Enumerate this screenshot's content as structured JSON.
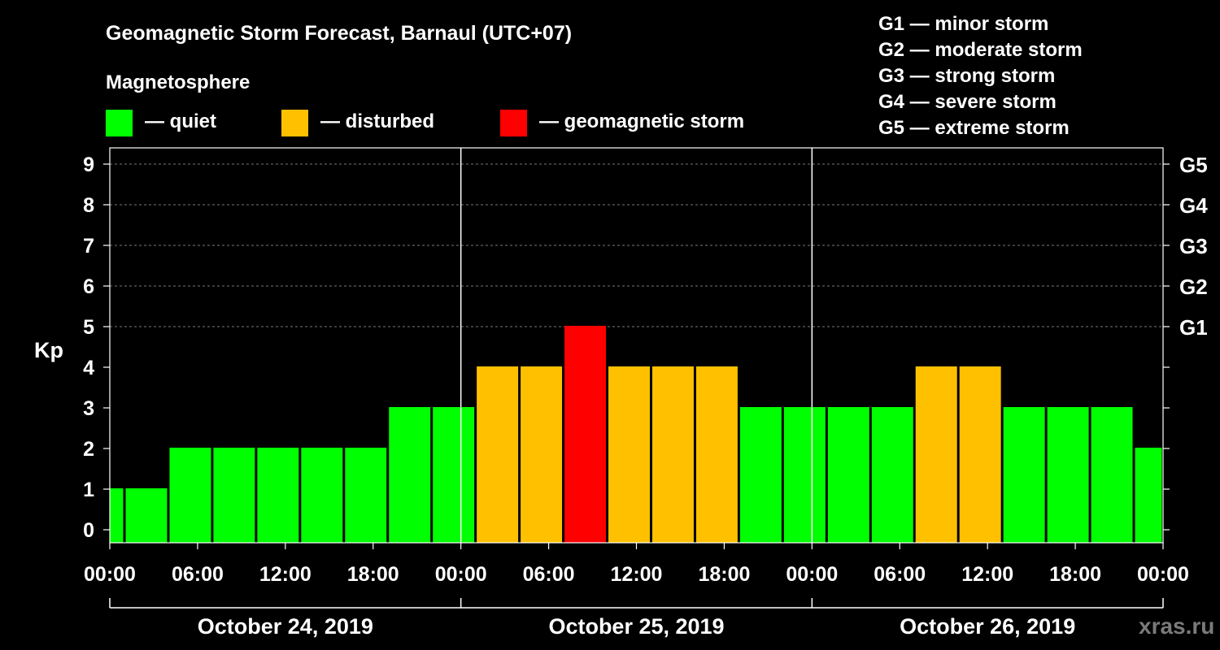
{
  "chart_data": {
    "type": "bar",
    "title": "Geomagnetic Storm Forecast, Barnaul (UTC+07)",
    "legend_title": "Magnetosphere",
    "legend": [
      {
        "key": "quiet",
        "label": "— quiet",
        "color": "#00ff00"
      },
      {
        "key": "disturbed",
        "label": "— disturbed",
        "color": "#ffc000"
      },
      {
        "key": "storm",
        "label": "— geomagnetic storm",
        "color": "#ff0000"
      }
    ],
    "storm_scale": [
      "G1 — minor storm",
      "G2 — moderate storm",
      "G3 — strong storm",
      "G4 — severe storm",
      "G5 — extreme storm"
    ],
    "ylabel": "Kp",
    "ylim": [
      0,
      9
    ],
    "yticks": [
      "0",
      "1",
      "2",
      "3",
      "4",
      "5",
      "6",
      "7",
      "8",
      "9"
    ],
    "right_labels": [
      {
        "kp": 5,
        "label": "G1"
      },
      {
        "kp": 6,
        "label": "G2"
      },
      {
        "kp": 7,
        "label": "G3"
      },
      {
        "kp": 8,
        "label": "G4"
      },
      {
        "kp": 9,
        "label": "G5"
      }
    ],
    "xlim_hours": [
      0,
      72
    ],
    "xtick_labels": [
      "00:00",
      "06:00",
      "12:00",
      "18:00",
      "00:00",
      "06:00",
      "12:00",
      "18:00",
      "00:00",
      "06:00",
      "12:00",
      "18:00",
      "00:00"
    ],
    "days": [
      "October 24, 2019",
      "October 25, 2019",
      "October 26, 2019"
    ],
    "bars": [
      {
        "start": 0,
        "end": 1,
        "kp": 1,
        "status": "quiet"
      },
      {
        "start": 1,
        "end": 4,
        "kp": 1,
        "status": "quiet"
      },
      {
        "start": 4,
        "end": 7,
        "kp": 2,
        "status": "quiet"
      },
      {
        "start": 7,
        "end": 10,
        "kp": 2,
        "status": "quiet"
      },
      {
        "start": 10,
        "end": 13,
        "kp": 2,
        "status": "quiet"
      },
      {
        "start": 13,
        "end": 16,
        "kp": 2,
        "status": "quiet"
      },
      {
        "start": 16,
        "end": 19,
        "kp": 2,
        "status": "quiet"
      },
      {
        "start": 19,
        "end": 22,
        "kp": 3,
        "status": "quiet"
      },
      {
        "start": 22,
        "end": 25,
        "kp": 3,
        "status": "quiet"
      },
      {
        "start": 25,
        "end": 28,
        "kp": 4,
        "status": "disturbed"
      },
      {
        "start": 28,
        "end": 31,
        "kp": 4,
        "status": "disturbed"
      },
      {
        "start": 31,
        "end": 34,
        "kp": 5,
        "status": "storm"
      },
      {
        "start": 34,
        "end": 37,
        "kp": 4,
        "status": "disturbed"
      },
      {
        "start": 37,
        "end": 40,
        "kp": 4,
        "status": "disturbed"
      },
      {
        "start": 40,
        "end": 43,
        "kp": 4,
        "status": "disturbed"
      },
      {
        "start": 43,
        "end": 46,
        "kp": 3,
        "status": "quiet"
      },
      {
        "start": 46,
        "end": 49,
        "kp": 3,
        "status": "quiet"
      },
      {
        "start": 49,
        "end": 52,
        "kp": 3,
        "status": "quiet"
      },
      {
        "start": 52,
        "end": 55,
        "kp": 3,
        "status": "quiet"
      },
      {
        "start": 55,
        "end": 58,
        "kp": 4,
        "status": "disturbed"
      },
      {
        "start": 58,
        "end": 61,
        "kp": 4,
        "status": "disturbed"
      },
      {
        "start": 61,
        "end": 64,
        "kp": 3,
        "status": "quiet"
      },
      {
        "start": 64,
        "end": 67,
        "kp": 3,
        "status": "quiet"
      },
      {
        "start": 67,
        "end": 70,
        "kp": 3,
        "status": "quiet"
      },
      {
        "start": 70,
        "end": 72,
        "kp": 2,
        "status": "quiet"
      }
    ],
    "watermark": "xras.ru"
  }
}
